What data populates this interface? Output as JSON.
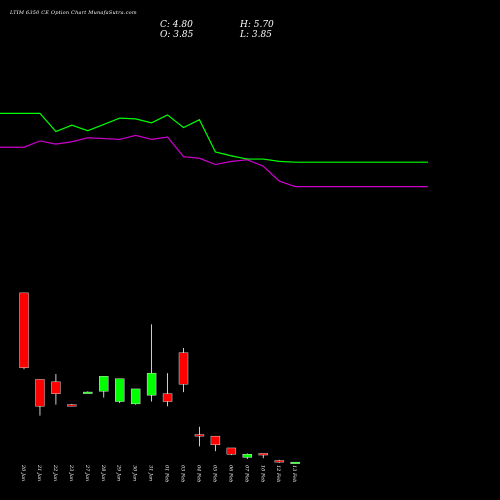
{
  "header": {
    "title": "LTIM 6350  CE Option  Chart MunafaSutra.com",
    "close": "C: 4.80",
    "high": "H: 5.70",
    "open": "O: 3.85",
    "low": "L: 3.85"
  },
  "colors": {
    "background": "#000000",
    "up": "#00ff00",
    "down": "#ff0000",
    "line_green": "#00ff00",
    "line_magenta": "#cc00cc",
    "text": "#ffffff"
  },
  "chart_data": {
    "type": "candlestick",
    "categories": [
      "20 Jan",
      "21 Jan",
      "22 Jan",
      "23 Jan",
      "27 Jan",
      "28 Jan",
      "29 Jan",
      "30 Jan",
      "31 Jan",
      "01 Feb",
      "03 Feb",
      "04 Feb",
      "05 Feb",
      "06 Feb",
      "07 Feb",
      "10 Feb",
      "12 Feb",
      "13 Feb"
    ],
    "candles": [
      {
        "open": 155,
        "close": 60,
        "high": 155,
        "low": 58,
        "dir": "down"
      },
      {
        "open": 45,
        "close": 11,
        "high": 45,
        "low": -1,
        "dir": "down"
      },
      {
        "open": 42,
        "close": 27,
        "high": 52,
        "low": 13,
        "dir": "down"
      },
      {
        "open": 13,
        "close": 13,
        "high": 14,
        "low": 13,
        "dir": "down"
      },
      {
        "open": 29,
        "close": 29,
        "high": 30,
        "low": 28,
        "dir": "up"
      },
      {
        "open": 30,
        "close": 49,
        "high": 49,
        "low": 22,
        "dir": "up"
      },
      {
        "open": 17,
        "close": 46,
        "high": 46,
        "low": 15,
        "dir": "up"
      },
      {
        "open": 14,
        "close": 33,
        "high": 33,
        "low": 13,
        "dir": "up"
      },
      {
        "open": 25,
        "close": 53,
        "high": 115,
        "low": 17,
        "dir": "up"
      },
      {
        "open": 27,
        "close": 17,
        "high": 53,
        "low": 11,
        "dir": "down"
      },
      {
        "open": 79,
        "close": 39,
        "high": 85,
        "low": 29,
        "dir": "down"
      },
      {
        "open": -25,
        "close": -27,
        "high": -15,
        "low": -40,
        "dir": "down"
      },
      {
        "open": -27,
        "close": -38,
        "high": -27,
        "low": -46,
        "dir": "down"
      },
      {
        "open": -42,
        "close": -50,
        "high": -42,
        "low": -51,
        "dir": "down"
      },
      {
        "open": -50,
        "close": -54,
        "high": -49,
        "low": -56,
        "dir": "up"
      },
      {
        "open": -49,
        "close": -51,
        "high": -49,
        "low": -55,
        "dir": "down"
      },
      {
        "open": -58,
        "close": -60,
        "high": -57,
        "low": -61,
        "dir": "down"
      },
      {
        "open": -61,
        "close": -60,
        "high": -60,
        "low": -62,
        "dir": "up"
      }
    ],
    "overlay_series": [
      {
        "color": "#00ff00",
        "values": [
          383,
          383,
          360,
          368,
          361,
          369,
          377,
          376,
          371,
          381,
          365,
          375,
          334,
          329,
          325,
          325,
          322,
          321
        ]
      },
      {
        "color": "#cc00cc",
        "values": [
          340,
          348,
          344,
          347,
          352,
          351,
          350,
          355,
          350,
          353,
          328,
          326,
          318,
          322,
          324,
          316,
          297,
          290
        ]
      }
    ],
    "ylim": [
      -70,
      400
    ],
    "grid": false
  }
}
